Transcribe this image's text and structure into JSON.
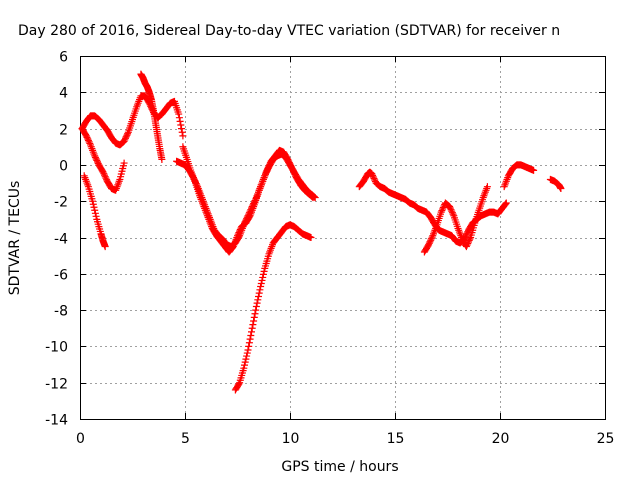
{
  "chart_data": {
    "type": "scatter",
    "title": "Day 280 of 2016, Sidereal Day-to-day VTEC variation (SDTVAR) for receiver n",
    "xlabel": "GPS time / hours",
    "ylabel": "SDTVAR / TECUs",
    "xlim": [
      0,
      25
    ],
    "ylim": [
      -14,
      6
    ],
    "xticks": [
      "0",
      "5",
      "10",
      "15",
      "20",
      "25"
    ],
    "yticks": [
      "-14",
      "-12",
      "-10",
      "-8",
      "-6",
      "-4",
      "-2",
      "0",
      "2",
      "4",
      "6"
    ],
    "grid": true,
    "marker_color": "#ff0000",
    "series": [
      {
        "x": [
          0.2,
          0.4,
          0.6,
          0.8,
          1.0,
          1.1,
          1.2
        ],
        "y": [
          -0.6,
          -1.2,
          -2.0,
          -3.0,
          -3.8,
          -4.2,
          -4.5
        ]
      },
      {
        "x": [
          0.1,
          0.3,
          0.5,
          0.7,
          0.9,
          1.1,
          1.3,
          1.5,
          1.7,
          1.9,
          2.1
        ],
        "y": [
          2.0,
          1.6,
          1.1,
          0.5,
          0.0,
          -0.4,
          -0.9,
          -1.3,
          -1.4,
          -0.8,
          0.1
        ]
      },
      {
        "x": [
          0.1,
          0.3,
          0.5,
          0.7,
          0.9,
          1.1,
          1.3,
          1.5,
          1.7,
          1.9,
          2.1,
          2.3,
          2.5,
          2.7,
          2.9,
          3.1,
          3.3,
          3.5,
          3.7,
          3.9,
          4.1,
          4.3,
          4.5,
          4.7,
          4.9
        ],
        "y": [
          2.0,
          2.4,
          2.7,
          2.7,
          2.5,
          2.2,
          1.9,
          1.5,
          1.2,
          1.1,
          1.3,
          1.8,
          2.5,
          3.2,
          3.8,
          3.8,
          3.4,
          2.9,
          2.6,
          2.8,
          3.1,
          3.4,
          3.5,
          2.8,
          1.6
        ]
      },
      {
        "x": [
          2.9,
          3.0,
          3.1,
          3.2,
          3.3,
          3.4,
          3.5,
          3.6,
          3.7,
          3.8,
          3.9
        ],
        "y": [
          5.0,
          4.8,
          4.5,
          4.3,
          4.0,
          3.6,
          3.0,
          2.3,
          1.6,
          0.9,
          0.3
        ]
      },
      {
        "x": [
          4.6,
          4.8,
          5.0,
          5.2,
          5.4,
          5.6,
          5.8,
          6.0,
          6.2,
          6.4,
          6.6,
          6.8,
          7.0,
          7.2,
          7.4,
          7.6,
          7.8,
          8.0,
          8.2,
          8.4,
          8.6,
          8.8,
          9.0,
          9.2,
          9.4,
          9.6,
          9.8,
          10.0,
          10.2,
          10.4,
          10.6,
          10.8,
          11.0,
          11.2
        ],
        "y": [
          0.2,
          0.1,
          0.0,
          -0.3,
          -0.7,
          -1.2,
          -1.8,
          -2.4,
          -3.0,
          -3.6,
          -3.9,
          -4.1,
          -4.4,
          -4.5,
          -4.3,
          -3.9,
          -3.3,
          -2.8,
          -2.3,
          -1.8,
          -1.2,
          -0.6,
          -0.1,
          0.3,
          0.5,
          0.6,
          0.4,
          0.0,
          -0.4,
          -0.8,
          -1.1,
          -1.4,
          -1.6,
          -1.8
        ]
      },
      {
        "x": [
          4.9,
          5.1,
          5.3,
          5.5,
          5.7,
          5.9,
          6.1,
          6.3,
          6.5,
          6.7,
          6.9,
          7.1,
          7.3,
          7.5,
          7.7,
          7.9,
          8.1,
          8.3,
          8.5,
          8.7,
          8.9,
          9.1,
          9.3,
          9.5,
          9.7,
          9.9,
          10.1,
          10.3,
          10.5,
          10.7,
          10.9,
          11.1
        ],
        "y": [
          1.0,
          0.3,
          -0.4,
          -1.0,
          -1.7,
          -2.3,
          -2.9,
          -3.5,
          -3.9,
          -4.2,
          -4.5,
          -4.8,
          -4.5,
          -3.9,
          -3.4,
          -3.2,
          -2.8,
          -2.2,
          -1.5,
          -0.9,
          -0.3,
          0.2,
          0.5,
          0.8,
          0.7,
          0.3,
          -0.2,
          -0.7,
          -1.1,
          -1.4,
          -1.6,
          -1.8
        ]
      },
      {
        "x": [
          7.4,
          7.6,
          7.8,
          8.0,
          8.2,
          8.4,
          8.6,
          8.8,
          9.0,
          9.2,
          9.4,
          9.6,
          9.8,
          10.0,
          10.2,
          10.4,
          10.6,
          10.8,
          11.0
        ],
        "y": [
          -12.4,
          -12.0,
          -11.2,
          -10.2,
          -9.0,
          -7.8,
          -6.7,
          -5.7,
          -4.9,
          -4.3,
          -4.0,
          -3.7,
          -3.4,
          -3.3,
          -3.4,
          -3.6,
          -3.8,
          -3.9,
          -4.0
        ]
      },
      {
        "x": [
          13.3,
          13.5,
          13.7,
          13.8,
          13.9,
          14.1,
          14.3,
          14.5,
          14.7,
          14.9,
          15.1,
          15.3,
          15.5,
          15.7,
          15.9,
          16.1,
          16.3,
          16.5,
          16.7,
          16.9,
          17.1,
          17.3,
          17.5,
          17.7,
          17.9,
          18.1,
          18.3,
          18.5,
          18.7,
          18.9,
          19.1,
          19.3,
          19.5,
          19.7,
          19.9,
          20.1,
          20.3
        ],
        "y": [
          -1.2,
          -0.9,
          -0.5,
          -0.4,
          -0.5,
          -1.0,
          -1.2,
          -1.3,
          -1.5,
          -1.6,
          -1.7,
          -1.8,
          -1.9,
          -2.1,
          -2.2,
          -2.4,
          -2.5,
          -2.6,
          -2.9,
          -3.3,
          -3.6,
          -3.7,
          -3.8,
          -3.9,
          -4.2,
          -4.3,
          -4.1,
          -3.6,
          -3.2,
          -3.0,
          -2.8,
          -2.7,
          -2.6,
          -2.6,
          -2.7,
          -2.4,
          -2.1
        ]
      },
      {
        "x": [
          16.4,
          16.6,
          16.8,
          17.0,
          17.2,
          17.4,
          17.6,
          17.8,
          18.0,
          18.2,
          18.4,
          18.6,
          18.8,
          19.0,
          19.2,
          19.4
        ],
        "y": [
          -4.8,
          -4.4,
          -3.9,
          -3.3,
          -2.6,
          -2.1,
          -2.3,
          -2.8,
          -3.5,
          -4.1,
          -4.5,
          -4.0,
          -3.2,
          -2.5,
          -1.8,
          -1.2
        ]
      },
      {
        "x": [
          20.2,
          20.4,
          20.6,
          20.8,
          21.0,
          21.2,
          21.4,
          21.6
        ],
        "y": [
          -1.2,
          -0.6,
          -0.2,
          0.0,
          0.0,
          -0.1,
          -0.2,
          -0.3
        ]
      },
      {
        "x": [
          22.4,
          22.6,
          22.8,
          22.9
        ],
        "y": [
          -0.8,
          -0.9,
          -1.1,
          -1.3
        ]
      }
    ]
  }
}
